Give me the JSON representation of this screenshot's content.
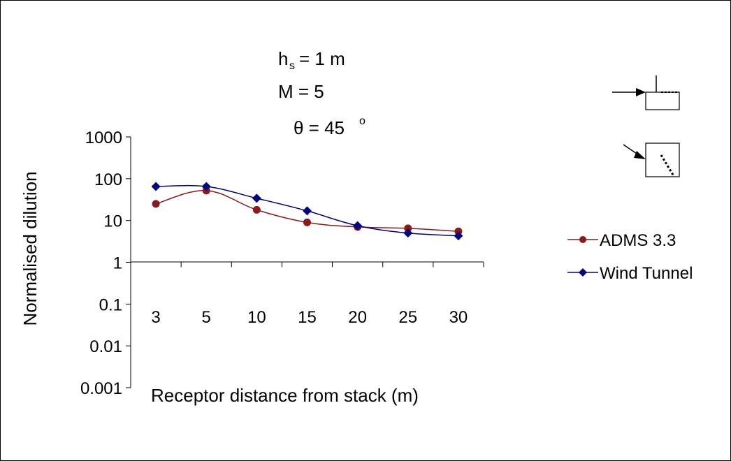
{
  "chart_data": {
    "type": "line",
    "title_lines": [
      "h",
      "s",
      "= 1 m",
      "M = 5",
      "θ = 45",
      "o"
    ],
    "xlabel": "Receptor distance from stack (m)",
    "ylabel": "Normalised dilution",
    "y_scale": "log",
    "ylim": [
      0.001,
      1000
    ],
    "y_ticks": [
      "1000",
      "100",
      "10",
      "1",
      "0.1",
      "0.01",
      "0.001"
    ],
    "categories": [
      "3",
      "5",
      "10",
      "15",
      "20",
      "25",
      "30"
    ],
    "series": [
      {
        "name": "ADMS 3.3",
        "color": "#8B1A1A",
        "marker": "circle",
        "values": [
          25,
          52,
          18,
          9,
          7,
          6.5,
          5.5
        ]
      },
      {
        "name": "Wind Tunnel",
        "color": "#000080",
        "marker": "diamond",
        "values": [
          65,
          65,
          34,
          17,
          7.5,
          5,
          4.3
        ]
      }
    ],
    "legend_position": "right",
    "grid": false
  },
  "icons": [
    "side-view-stack-icon",
    "plan-view-stack-icon"
  ]
}
